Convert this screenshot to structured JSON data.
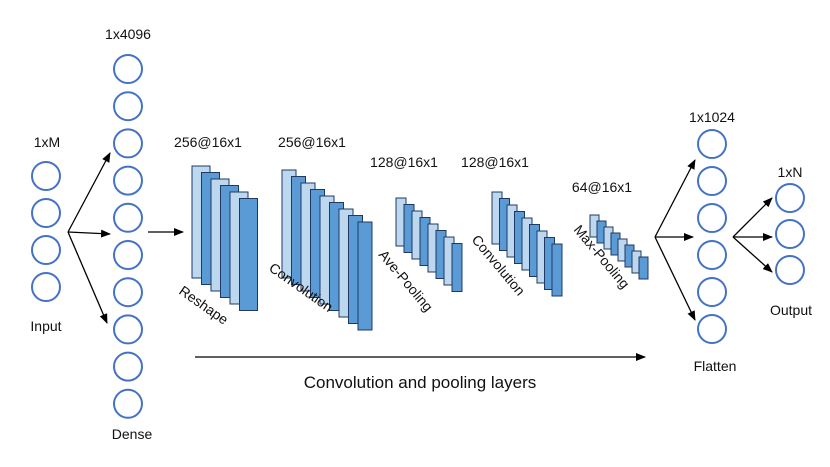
{
  "colors": {
    "node_stroke": "#4472c4",
    "node_fill": "#ffffff",
    "layer_light": "#bdd7ee",
    "layer_mid": "#9dc3e6",
    "layer_dark": "#5b9bd5",
    "layer_stroke": "#1f3864",
    "arrow": "#000000"
  },
  "input": {
    "size_label": "1xM",
    "caption": "Input",
    "node_count": 4
  },
  "dense": {
    "size_label": "1x4096",
    "caption": "Dense",
    "node_count": 10
  },
  "layers": [
    {
      "dims": "256@16x1",
      "caption": "Reshape"
    },
    {
      "dims": "256@16x1",
      "caption": "Convolution"
    },
    {
      "dims": "128@16x1",
      "caption": "Ave-Pooling"
    },
    {
      "dims": "128@16x1",
      "caption": "Convolution"
    },
    {
      "dims": "64@16x1",
      "caption": "Max-Pooling"
    }
  ],
  "flatten": {
    "size_label": "1x1024",
    "caption": "Flatten",
    "node_count": 6
  },
  "output": {
    "size_label": "1xN",
    "caption": "Output",
    "node_count": 3
  },
  "bottom_caption": "Convolution and pooling layers"
}
